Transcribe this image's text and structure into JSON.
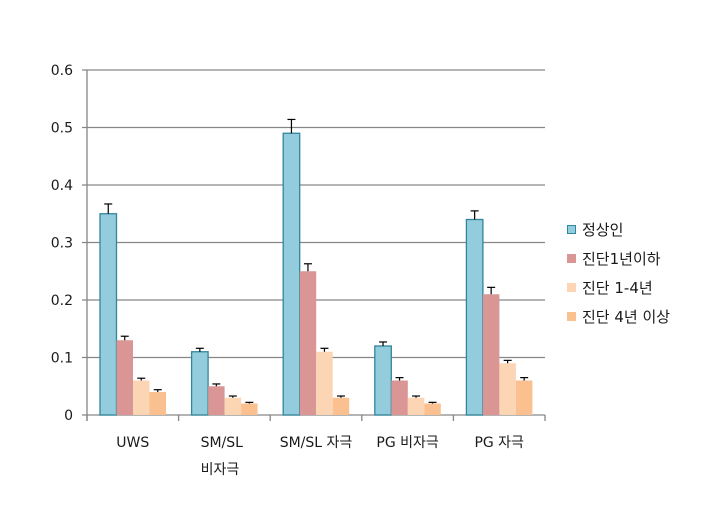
{
  "chart_data": {
    "type": "bar",
    "title": "",
    "xlabel": "",
    "ylabel": "",
    "ylim": [
      0,
      0.6
    ],
    "yticks": [
      "0",
      "0.1",
      "0.2",
      "0.3",
      "0.4",
      "0.5",
      "0.6"
    ],
    "grid": true,
    "legend_position": "right",
    "categories": [
      "UWS",
      "SM/SL\n비자극",
      "SM/SL 자극",
      "PG 비자극",
      "PG 자극"
    ],
    "category_lines": [
      [
        "UWS"
      ],
      [
        "SM/SL",
        "비자극"
      ],
      [
        "SM/SL 자극"
      ],
      [
        "PG 비자극"
      ],
      [
        "PG 자극"
      ]
    ],
    "series": [
      {
        "name": "정상인",
        "color": "#93CDDD",
        "border": "#31859C",
        "values": [
          0.35,
          0.11,
          0.49,
          0.12,
          0.34
        ],
        "errors": [
          0.017,
          0.006,
          0.024,
          0.007,
          0.015
        ]
      },
      {
        "name": "진단1년이하",
        "color": "#D99694",
        "border": "#D99694",
        "values": [
          0.13,
          0.05,
          0.25,
          0.06,
          0.21
        ],
        "errors": [
          0.007,
          0.004,
          0.013,
          0.005,
          0.012
        ]
      },
      {
        "name": "진단 1-4년",
        "color": "#FCD5B5",
        "border": "#FCD5B5",
        "values": [
          0.06,
          0.03,
          0.11,
          0.03,
          0.09
        ],
        "errors": [
          0.004,
          0.003,
          0.006,
          0.003,
          0.005
        ]
      },
      {
        "name": "진단 4년 이상",
        "color": "#FAC090",
        "border": "#FAC090",
        "values": [
          0.04,
          0.02,
          0.03,
          0.02,
          0.06
        ],
        "errors": [
          0.004,
          0.002,
          0.003,
          0.002,
          0.005
        ]
      }
    ]
  },
  "legend": {
    "items": [
      {
        "label": "정상인"
      },
      {
        "label": "진단1년이하"
      },
      {
        "label": "진단 1-4년"
      },
      {
        "label": "진단 4년 이상"
      }
    ]
  }
}
